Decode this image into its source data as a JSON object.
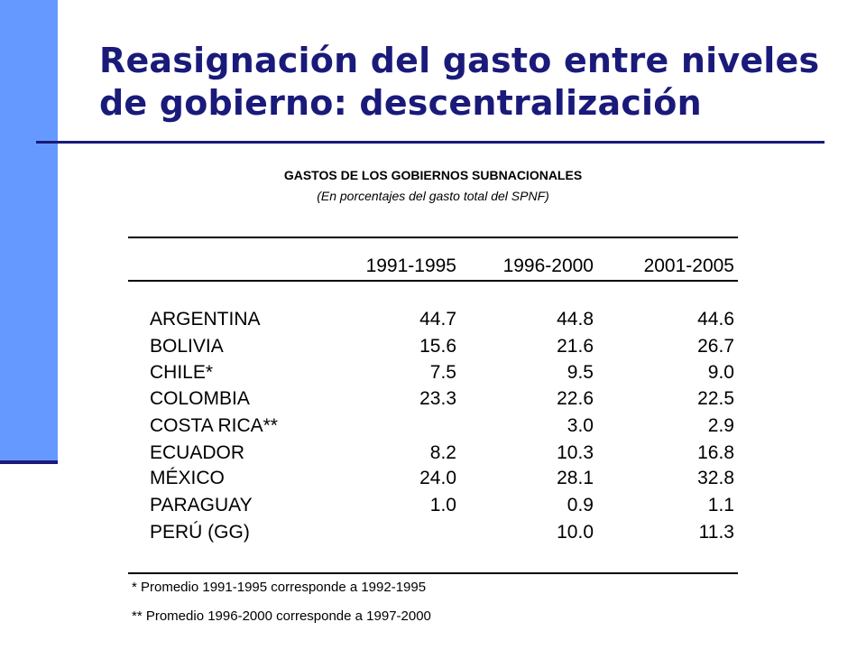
{
  "slide": {
    "title_line1": "Reasignación del gasto entre niveles",
    "title_line2": "de gobierno: descentralización"
  },
  "table": {
    "heading": "GASTOS DE LOS GOBIERNOS SUBNACIONALES",
    "subheading": "(En porcentajes del gasto total del SPNF)",
    "columns": [
      "1991-1995",
      "1996-2000",
      "2001-2005"
    ],
    "rows": [
      {
        "country": "ARGENTINA",
        "values": [
          "44.7",
          "44.8",
          "44.6"
        ]
      },
      {
        "country": "BOLIVIA",
        "values": [
          "15.6",
          "21.6",
          "26.7"
        ]
      },
      {
        "country": "CHILE*",
        "values": [
          "7.5",
          "9.5",
          "9.0"
        ]
      },
      {
        "country": "COLOMBIA",
        "values": [
          "23.3",
          "22.6",
          "22.5"
        ]
      },
      {
        "country": "COSTA RICA**",
        "values": [
          "",
          "3.0",
          "2.9"
        ]
      },
      {
        "country": "ECUADOR",
        "values": [
          "8.2",
          "10.3",
          "16.8"
        ]
      },
      {
        "country": "MÉXICO",
        "values": [
          "24.0",
          "28.1",
          "32.8"
        ]
      },
      {
        "country": "PARAGUAY",
        "values": [
          "1.0",
          "0.9",
          "1.1"
        ]
      },
      {
        "country": "PERÚ (GG)",
        "values": [
          "",
          "10.0",
          "11.3"
        ]
      }
    ],
    "footnotes": [
      "* Promedio 1991-1995 corresponde a 1992-1995",
      "** Promedio 1996-2000 corresponde a 1997-2000"
    ]
  },
  "colors": {
    "accent_bar": "#6699ff",
    "title": "#1a1a7a"
  }
}
